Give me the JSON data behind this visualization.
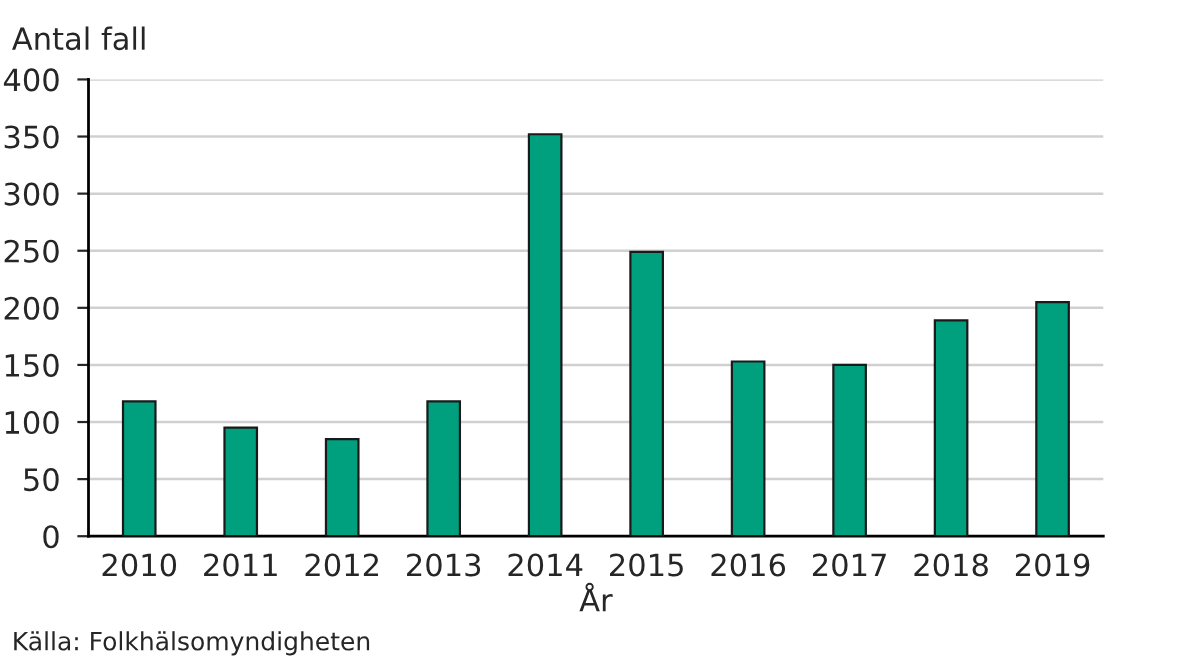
{
  "chart_data": {
    "type": "bar",
    "ylabel": "Antal fall",
    "xlabel": "År",
    "categories": [
      "2010",
      "2011",
      "2012",
      "2013",
      "2014",
      "2015",
      "2016",
      "2017",
      "2018",
      "2019"
    ],
    "values": [
      118,
      95,
      85,
      118,
      352,
      249,
      153,
      150,
      189,
      205
    ],
    "color": "#00a07f",
    "ylim": [
      0,
      400
    ],
    "yticks": [
      0,
      50,
      100,
      150,
      200,
      250,
      300,
      350,
      400
    ],
    "grid": "y",
    "annotations": [
      "Källa: Folkhälsomyndigheten"
    ]
  }
}
